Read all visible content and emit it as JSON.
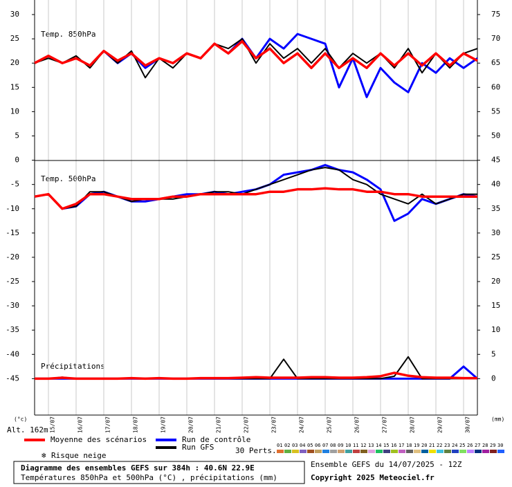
{
  "chart_data": {
    "type": "line",
    "title": "Diagramme des ensembles GEFS sur 384h : 40.6N 22.9E",
    "subtitle": "Températures 850hPa et 500hPa (°C) , précipitations (mm)",
    "run_info": "Ensemble GEFS du 14/07/2025 - 12Z",
    "copyright": "Copyright 2025 Meteociel.fr",
    "y_unit": "(°c)",
    "y2_unit": "(mm)",
    "altitude": "Alt. 162m",
    "snow_label": "Risque neige",
    "perturbations_label": "30 Perts.",
    "panels": [
      "Temp. 850hPa",
      "Temp. 500hPa",
      "Précipitations"
    ],
    "categories": [
      null,
      "15/07",
      null,
      "16/07",
      null,
      "17/07",
      null,
      "18/07",
      null,
      "19/07",
      null,
      "20/07",
      null,
      "21/07",
      null,
      "22/07",
      null,
      "23/07",
      null,
      "24/07",
      null,
      "25/07",
      null,
      "26/07",
      null,
      "27/07",
      null,
      "28/07",
      null,
      "29/07",
      null,
      "30/07",
      null
    ],
    "ylim": [
      -52.5,
      33
    ],
    "yticks": [
      30,
      25,
      20,
      15,
      10,
      5,
      0,
      -5,
      -10,
      -15,
      -20,
      -25,
      -30,
      -35,
      -40,
      -45
    ],
    "y2lim": [
      -7.5,
      78
    ],
    "y2ticks": [
      75,
      70,
      65,
      60,
      55,
      50,
      45,
      40,
      35,
      30,
      25,
      20,
      15,
      10,
      5,
      0
    ],
    "grid": true,
    "series": [
      {
        "name": "Run de contrôle",
        "color": "#0000ff",
        "width": 3,
        "t850": [
          20,
          21.5,
          20,
          21,
          19.5,
          22.5,
          20,
          22,
          19,
          21,
          20,
          22,
          21,
          24,
          22,
          25,
          21,
          25,
          23,
          26,
          25,
          24,
          15,
          21,
          13,
          19,
          16,
          14,
          20,
          18,
          21,
          19,
          21
        ],
        "t500": [
          -7.5,
          -7,
          -10,
          -9.5,
          -7,
          -6.5,
          -7.5,
          -8.5,
          -8.5,
          -8,
          -7.5,
          -7,
          -7,
          -6.5,
          -7,
          -6.5,
          -6,
          -5,
          -3,
          -2.5,
          -2,
          -1,
          -2,
          -2.5,
          -4,
          -6,
          -12.5,
          -11,
          -8,
          -9,
          -8,
          -7,
          -7.5
        ],
        "precip": [
          0,
          0,
          0,
          0,
          0,
          0,
          0,
          0,
          0,
          0,
          0,
          0,
          0,
          0,
          0,
          0,
          0,
          0,
          0,
          0,
          0,
          0,
          0,
          0,
          0,
          0,
          0,
          0,
          0,
          0,
          0,
          2.5,
          0
        ]
      },
      {
        "name": "Run GFS",
        "color": "#000000",
        "width": 2,
        "t850": [
          20,
          21,
          20,
          21.5,
          19,
          22.5,
          20,
          22.5,
          17,
          21,
          19,
          22,
          21,
          24,
          23,
          25,
          20,
          24,
          21,
          23,
          20,
          23,
          19,
          22,
          20,
          22,
          19,
          23,
          18,
          22,
          19,
          22,
          23
        ],
        "t500": [
          -7.5,
          -7,
          -10,
          -9.5,
          -6.5,
          -6.5,
          -7.5,
          -8.5,
          -8,
          -8,
          -8,
          -7.5,
          -7,
          -6.5,
          -6.5,
          -7,
          -6,
          -5,
          -4,
          -3,
          -2,
          -1.5,
          -2,
          -4,
          -5,
          -7,
          -8,
          -9,
          -7,
          -9,
          -8,
          -7,
          -7
        ],
        "precip": [
          0,
          0,
          0.3,
          0,
          0,
          0,
          0,
          0,
          0,
          0,
          0,
          0,
          0,
          0,
          0,
          0,
          0,
          0,
          4,
          0,
          0,
          0,
          0,
          0,
          0,
          0,
          0.5,
          4.5,
          0,
          0,
          0,
          0,
          0
        ]
      },
      {
        "name": "Moyenne des scénarios",
        "color": "#ff0000",
        "width": 3.5,
        "t850": [
          20,
          21.5,
          20,
          21,
          19.5,
          22.5,
          20.5,
          22,
          19.5,
          21,
          20,
          22,
          21,
          24,
          22,
          24.5,
          21,
          23,
          20,
          22,
          19,
          22,
          19,
          21,
          19,
          22,
          19.5,
          22,
          19.5,
          22,
          19.5,
          22,
          20.5
        ],
        "t500": [
          -7.5,
          -7,
          -10,
          -9,
          -7,
          -7,
          -7.5,
          -8,
          -8,
          -8,
          -7.5,
          -7.5,
          -7,
          -7,
          -7,
          -7,
          -7,
          -6.5,
          -6.5,
          -6,
          -6,
          -5.8,
          -6,
          -6,
          -6.5,
          -6.5,
          -7,
          -7,
          -7.5,
          -7.5,
          -7.5,
          -7.5,
          -7.5
        ],
        "precip": [
          0,
          0,
          0.2,
          0,
          0,
          0,
          0,
          0.1,
          0,
          0.1,
          0,
          0,
          0.1,
          0.1,
          0.1,
          0.2,
          0.3,
          0.2,
          0.2,
          0.2,
          0.3,
          0.3,
          0.2,
          0.2,
          0.3,
          0.5,
          1.2,
          0.6,
          0.3,
          0.2,
          0.2,
          0.1,
          0.1
        ]
      }
    ],
    "perturbations": [
      {
        "name": "01",
        "color": "#e07030"
      },
      {
        "name": "02",
        "color": "#60b040"
      },
      {
        "name": "03",
        "color": "#d8c020"
      },
      {
        "name": "04",
        "color": "#8060c0"
      },
      {
        "name": "05",
        "color": "#a05020"
      },
      {
        "name": "06",
        "color": "#c0a060"
      },
      {
        "name": "07",
        "color": "#2080e0"
      },
      {
        "name": "08",
        "color": "#a0a0a0"
      },
      {
        "name": "09",
        "color": "#d0a070"
      },
      {
        "name": "10",
        "color": "#40a0a0"
      },
      {
        "name": "11",
        "color": "#c04040"
      },
      {
        "name": "12",
        "color": "#806020"
      },
      {
        "name": "13",
        "color": "#e0a0e0"
      },
      {
        "name": "14",
        "color": "#20c060"
      },
      {
        "name": "15",
        "color": "#404080"
      },
      {
        "name": "16",
        "color": "#a0c020"
      },
      {
        "name": "17",
        "color": "#c060c0"
      },
      {
        "name": "18",
        "color": "#606060"
      },
      {
        "name": "19",
        "color": "#e0c080"
      },
      {
        "name": "20",
        "color": "#0060a0"
      },
      {
        "name": "21",
        "color": "#f0e000"
      },
      {
        "name": "22",
        "color": "#40c0e0"
      },
      {
        "name": "23",
        "color": "#608040"
      },
      {
        "name": "24",
        "color": "#2040c0"
      },
      {
        "name": "25",
        "color": "#80e060"
      },
      {
        "name": "26",
        "color": "#c080ff"
      },
      {
        "name": "27",
        "color": "#003080"
      },
      {
        "name": "28",
        "color": "#a020a0"
      },
      {
        "name": "29",
        "color": "#802020"
      },
      {
        "name": "30",
        "color": "#2060ff"
      }
    ]
  }
}
